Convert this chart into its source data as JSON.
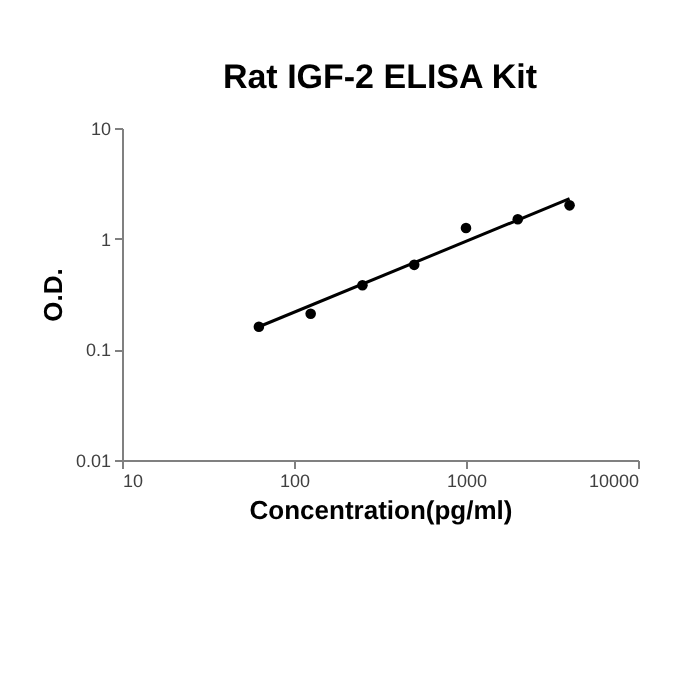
{
  "chart_data": {
    "type": "scatter",
    "title": "Rat IGF-2 ELISA Kit",
    "xlabel": "Concentration(pg/ml)",
    "ylabel": "O.D.",
    "log": "xy",
    "grid": false,
    "xlim": [
      10,
      10000
    ],
    "xticks": [
      10,
      100,
      1000,
      10000
    ],
    "ylim": [
      0.01,
      10
    ],
    "yticks": [
      0.01,
      0.1,
      1,
      10
    ],
    "series": [
      {
        "color": "#000000",
        "marker": "circle",
        "x": [
          62.5,
          125,
          250,
          500,
          1000,
          2000,
          4000
        ],
        "values": [
          0.16,
          0.21,
          0.38,
          0.58,
          1.25,
          1.5,
          2.0
        ]
      },
      {
        "type": "line",
        "color": "#000000",
        "line_style": "solid",
        "x": [
          62.5,
          4000
        ],
        "values": [
          0.16,
          2.3
        ]
      }
    ]
  }
}
